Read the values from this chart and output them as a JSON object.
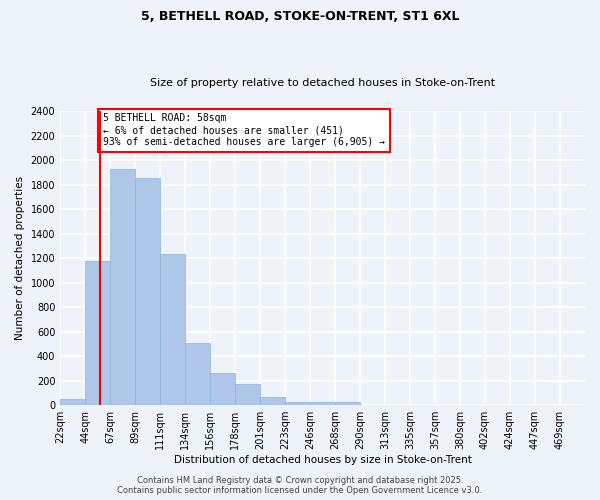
{
  "title_line1": "5, BETHELL ROAD, STOKE-ON-TRENT, ST1 6XL",
  "title_line2": "Size of property relative to detached houses in Stoke-on-Trent",
  "xlabel": "Distribution of detached houses by size in Stoke-on-Trent",
  "ylabel": "Number of detached properties",
  "bin_labels": [
    "22sqm",
    "44sqm",
    "67sqm",
    "89sqm",
    "111sqm",
    "134sqm",
    "156sqm",
    "178sqm",
    "201sqm",
    "223sqm",
    "246sqm",
    "268sqm",
    "290sqm",
    "313sqm",
    "335sqm",
    "357sqm",
    "380sqm",
    "402sqm",
    "424sqm",
    "447sqm",
    "469sqm"
  ],
  "values": [
    50,
    1180,
    1930,
    1850,
    1230,
    510,
    260,
    170,
    70,
    30,
    25,
    25,
    5,
    3,
    2,
    1,
    1,
    0,
    0,
    0,
    0
  ],
  "property_size_bar": 1,
  "bar_color": "#aec6e8",
  "bar_edge_color": "#8ab4d8",
  "vline_color": "red",
  "annotation_text": "5 BETHELL ROAD: 58sqm\n← 6% of detached houses are smaller (451)\n93% of semi-detached houses are larger (6,905) →",
  "annotation_box_color": "white",
  "annotation_box_edge": "red",
  "background_color": "#eef2f9",
  "grid_color": "white",
  "ylim": [
    0,
    2400
  ],
  "yticks": [
    0,
    200,
    400,
    600,
    800,
    1000,
    1200,
    1400,
    1600,
    1800,
    2000,
    2200,
    2400
  ],
  "footer_text": "Contains HM Land Registry data © Crown copyright and database right 2025.\nContains public sector information licensed under the Open Government Licence v3.0.",
  "title_fontsize": 9,
  "subtitle_fontsize": 8,
  "ylabel_fontsize": 7.5,
  "xlabel_fontsize": 7.5,
  "tick_fontsize": 7,
  "footer_fontsize": 6,
  "annot_fontsize": 7
}
